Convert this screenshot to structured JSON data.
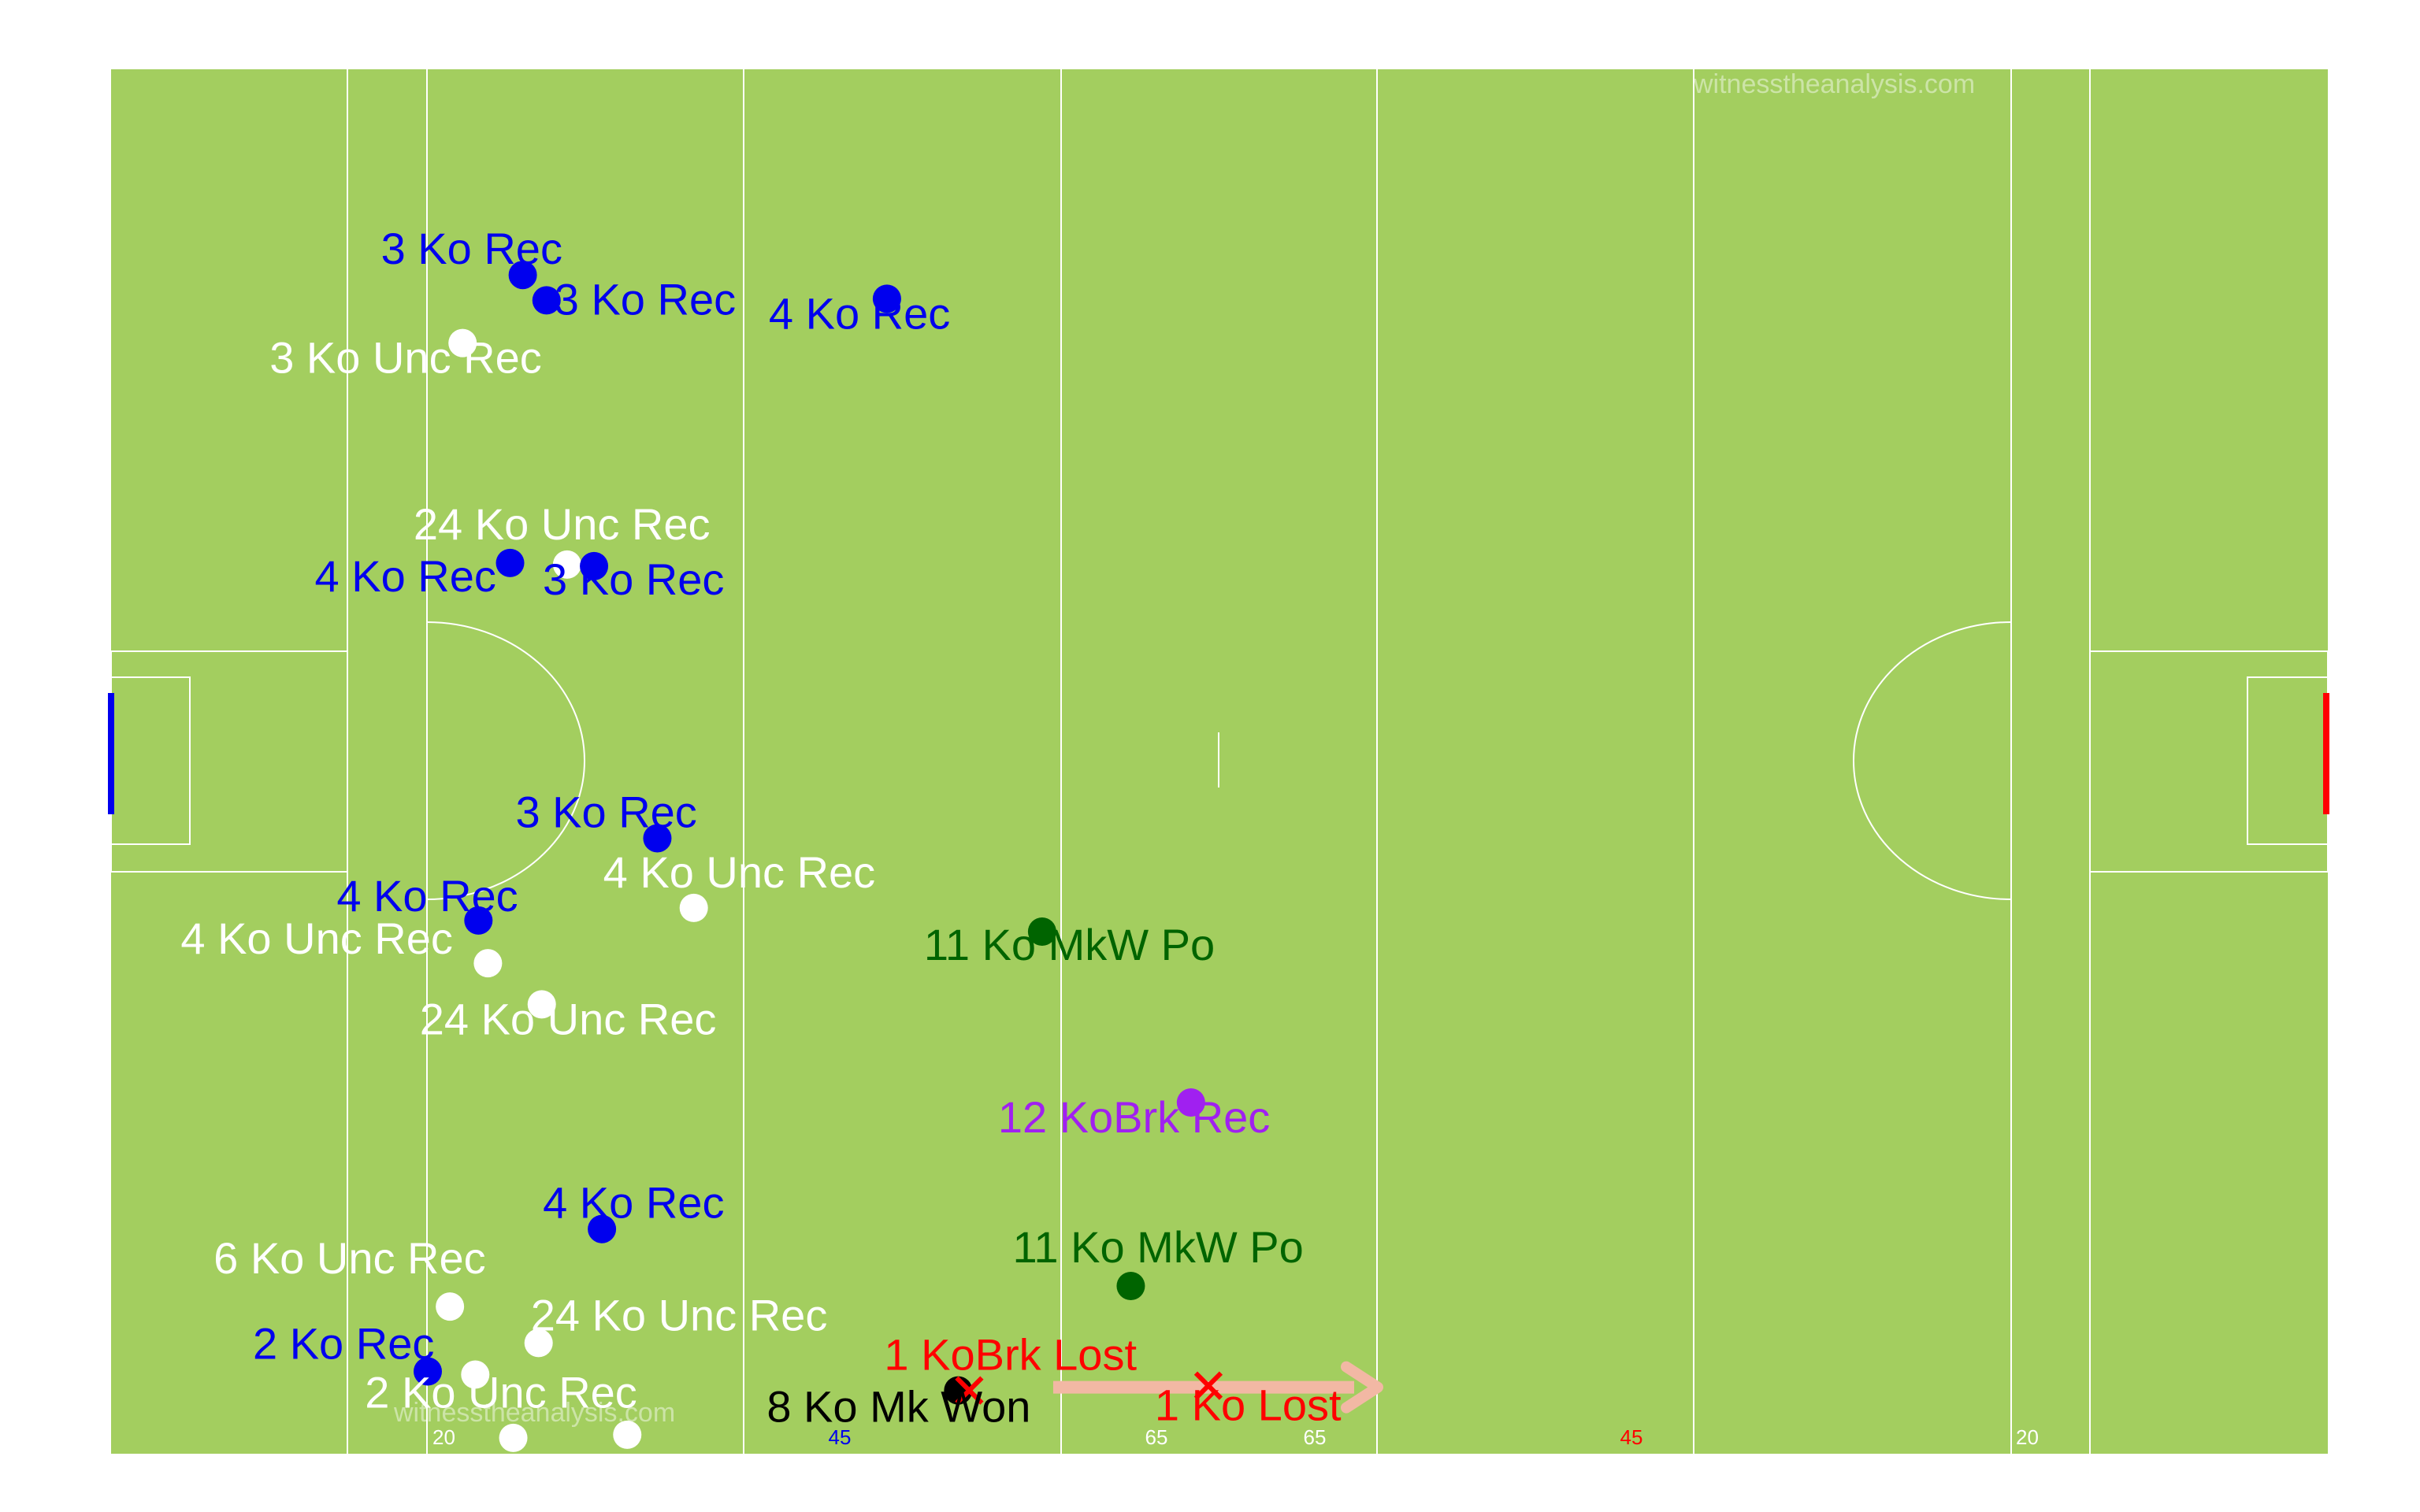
{
  "watermark": "witnesstheanalysis.com",
  "colors": {
    "pitch": "#a3ce5f",
    "line": "#ffffff",
    "blue": "#0000ee",
    "white": "#ffffff",
    "darkgreen": "#006400",
    "purple": "#a020f0",
    "red": "#ff0000",
    "black": "#000000",
    "arrow": "#f2b8a4"
  },
  "chart_data": {
    "type": "scatter",
    "title": "",
    "xlabel": "",
    "ylabel": "",
    "xlim": [
      0,
      140
    ],
    "ylim": [
      0,
      87.5
    ],
    "grid": false,
    "yard_markers": [
      {
        "x": 20,
        "label": "20",
        "color": "#ffffff"
      },
      {
        "x": 45,
        "label": "45",
        "color": "#0000ee"
      },
      {
        "x": 65,
        "label": "65",
        "color": "#ffffff"
      },
      {
        "x": 65,
        "label": "65",
        "color": "#ffffff",
        "far": true
      },
      {
        "x": 45,
        "label": "45",
        "color": "#ff0000",
        "far": true
      },
      {
        "x": 20,
        "label": "20",
        "color": "#ffffff",
        "far": true
      }
    ],
    "points": [
      {
        "x": 26.0,
        "y": 74.5,
        "label": "3 Ko Rec",
        "color": "#0000ee",
        "marker": "dot"
      },
      {
        "x": 27.5,
        "y": 72.9,
        "label": "3 Ko Rec",
        "color": "#0000ee",
        "marker": "dot"
      },
      {
        "x": 49.0,
        "y": 73.0,
        "label": "4 Ko Rec",
        "color": "#0000ee",
        "marker": "dot"
      },
      {
        "x": 22.2,
        "y": 70.2,
        "label": "3 Ko Unc Rec",
        "color": "#ffffff",
        "marker": "dot"
      },
      {
        "x": 28.8,
        "y": 56.2,
        "label": "24 Ko Unc Rec",
        "color": "#ffffff",
        "marker": "dot"
      },
      {
        "x": 25.2,
        "y": 56.3,
        "label": "4 Ko Rec",
        "color": "#0000ee",
        "marker": "dot"
      },
      {
        "x": 30.5,
        "y": 56.1,
        "label": "3 Ko Rec",
        "color": "#0000ee",
        "marker": "dot"
      },
      {
        "x": 34.5,
        "y": 38.9,
        "label": "3 Ko Rec",
        "color": "#0000ee",
        "marker": "dot"
      },
      {
        "x": 36.8,
        "y": 34.5,
        "label": "4 Ko Unc Rec",
        "color": "#ffffff",
        "marker": "dot"
      },
      {
        "x": 23.2,
        "y": 33.7,
        "label": "4 Ko Rec",
        "color": "#0000ee",
        "marker": "dot"
      },
      {
        "x": 23.8,
        "y": 31.0,
        "label": "4 Ko Unc Rec",
        "color": "#ffffff",
        "marker": "dot"
      },
      {
        "x": 27.2,
        "y": 28.4,
        "label": "24 Ko Unc Rec",
        "color": "#ffffff",
        "marker": "dot"
      },
      {
        "x": 58.8,
        "y": 33.0,
        "label": "11 Ko MkW Po",
        "color": "#006400",
        "marker": "dot"
      },
      {
        "x": 68.2,
        "y": 22.2,
        "label": "12 KoBrk Rec",
        "color": "#a020f0",
        "marker": "dot"
      },
      {
        "x": 31.0,
        "y": 14.2,
        "label": "4 Ko Rec",
        "color": "#0000ee",
        "marker": "dot"
      },
      {
        "x": 21.4,
        "y": 9.3,
        "label": "6 Ko Unc Rec",
        "color": "#ffffff",
        "marker": "dot"
      },
      {
        "x": 64.4,
        "y": 10.6,
        "label": "11 Ko MkW Po",
        "color": "#006400",
        "marker": "dot"
      },
      {
        "x": 27.0,
        "y": 7.0,
        "label": "24 Ko Unc Rec",
        "color": "#ffffff",
        "marker": "dot"
      },
      {
        "x": 20.0,
        "y": 5.2,
        "label": "2 Ko Rec",
        "color": "#0000ee",
        "marker": "dot"
      },
      {
        "x": 23.0,
        "y": 5.0,
        "label": "2 Ko Unc Rec",
        "color": "#ffffff",
        "marker": "dot"
      },
      {
        "x": 53.5,
        "y": 4.0,
        "label": "8 Ko Mk Won",
        "color": "#000000",
        "marker": "dot"
      },
      {
        "x": 54.2,
        "y": 4.0,
        "label": "1 KoBrk Lost",
        "color": "#ff0000",
        "marker": "cross"
      },
      {
        "x": 69.3,
        "y": 4.3,
        "label": "1 Ko Lost",
        "color": "#ff0000",
        "marker": "cross"
      },
      {
        "x": 25.4,
        "y": 1.0,
        "label": "",
        "color": "#ffffff",
        "marker": "dot"
      },
      {
        "x": 32.6,
        "y": 1.2,
        "label": "",
        "color": "#ffffff",
        "marker": "dot"
      }
    ],
    "arrows": [
      {
        "x1": 59.5,
        "y1": 4.2,
        "x2": 80.0,
        "y2": 4.2,
        "color": "#f2b8a4"
      }
    ]
  }
}
